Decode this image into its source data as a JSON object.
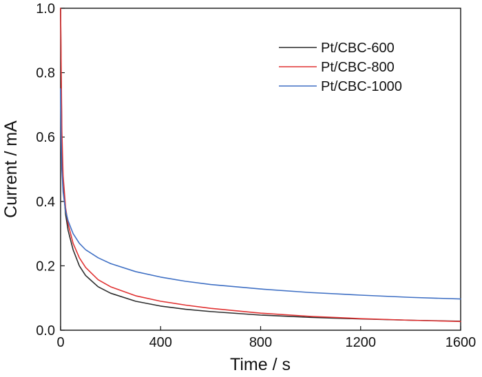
{
  "chart_data": {
    "type": "line",
    "xlabel": "Time / s",
    "ylabel": "Current / mA",
    "xlim": [
      0,
      1600
    ],
    "ylim": [
      0,
      1.0
    ],
    "x_ticks": [
      "0",
      "400",
      "800",
      "1200",
      "1600"
    ],
    "y_ticks": [
      "0.0",
      "0.2",
      "0.4",
      "0.6",
      "0.8",
      "1.0"
    ],
    "legend_position": "top-right",
    "grid": false,
    "x": [
      0,
      2,
      5,
      10,
      20,
      30,
      50,
      75,
      100,
      150,
      200,
      300,
      400,
      500,
      600,
      800,
      1000,
      1200,
      1400,
      1600
    ],
    "series": [
      {
        "name": "Pt/CBC-600",
        "color": "#2b2b2b",
        "values": [
          1.0,
          0.8,
          0.58,
          0.45,
          0.36,
          0.31,
          0.25,
          0.2,
          0.17,
          0.135,
          0.115,
          0.09,
          0.075,
          0.065,
          0.058,
          0.047,
          0.04,
          0.035,
          0.031,
          0.028
        ]
      },
      {
        "name": "Pt/CBC-800",
        "color": "#e03030",
        "values": [
          1.0,
          0.84,
          0.62,
          0.48,
          0.38,
          0.33,
          0.27,
          0.225,
          0.195,
          0.157,
          0.135,
          0.107,
          0.09,
          0.078,
          0.068,
          0.053,
          0.043,
          0.036,
          0.031,
          0.027
        ]
      },
      {
        "name": "Pt/CBC-1000",
        "color": "#3e6fc4",
        "values": [
          0.75,
          0.6,
          0.5,
          0.43,
          0.37,
          0.34,
          0.3,
          0.27,
          0.25,
          0.225,
          0.207,
          0.182,
          0.165,
          0.152,
          0.142,
          0.128,
          0.117,
          0.109,
          0.102,
          0.097
        ]
      }
    ]
  }
}
